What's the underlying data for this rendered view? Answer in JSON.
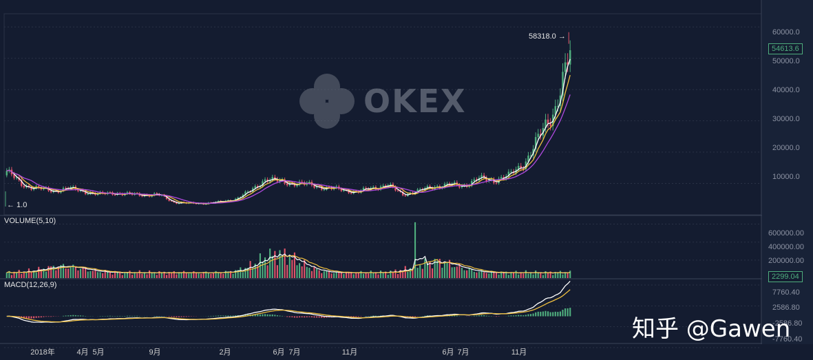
{
  "watermark": {
    "text": "OKEX"
  },
  "credit": {
    "text": "知乎 @Gawen"
  },
  "price_panel": {
    "high_label": "58318.0 →",
    "low_label": "← 1.0",
    "last_price": "54613.6",
    "y_ticks": [
      "60000.0",
      "50000.0",
      "40000.0",
      "30000.0",
      "20000.0",
      "10000.0"
    ]
  },
  "volume_panel": {
    "title": "VOLUME(5,10)",
    "last_value": "2299.04",
    "y_ticks": [
      "600000.00",
      "400000.00",
      "200000.00"
    ]
  },
  "macd_panel": {
    "title": "MACD(12,26,9)",
    "y_ticks": [
      "7760.40",
      "2586.80",
      "-2586.80",
      "-7760.40"
    ]
  },
  "x_axis": {
    "labels": [
      "2018年",
      "4月",
      "5月",
      "9月",
      "2月",
      "6月",
      "7月",
      "11月",
      "6月",
      "7月",
      "11月"
    ]
  },
  "colors": {
    "background": "#141c30",
    "up": "#4fae7e",
    "down": "#e0546a",
    "ma_white": "#ffffff",
    "ma_yellow": "#f0c040",
    "ma_purple": "#b04ae0",
    "grid": "#2a3246"
  },
  "chart_data": {
    "type": "line",
    "title": "",
    "x_start": "2018-01",
    "x_end": "2021-02",
    "panels": [
      "price",
      "volume",
      "macd"
    ],
    "price": {
      "ylim": [
        0,
        62000
      ],
      "x": [
        "2018-01",
        "2018-02",
        "2018-03",
        "2018-04",
        "2018-05",
        "2018-06",
        "2018-07",
        "2018-08",
        "2018-09",
        "2018-10",
        "2018-11",
        "2018-12",
        "2019-01",
        "2019-02",
        "2019-03",
        "2019-04",
        "2019-05",
        "2019-06",
        "2019-07",
        "2019-08",
        "2019-09",
        "2019-10",
        "2019-11",
        "2019-12",
        "2020-01",
        "2020-02",
        "2020-03",
        "2020-04",
        "2020-05",
        "2020-06",
        "2020-07",
        "2020-08",
        "2020-09",
        "2020-10",
        "2020-11",
        "2020-12",
        "2021-01",
        "2021-02"
      ],
      "series": [
        {
          "values": [
            14000,
            9500,
            8500,
            7500,
            8500,
            7500,
            6500,
            7000,
            6500,
            6400,
            6300,
            4000,
            3600,
            3700,
            4000,
            5000,
            7500,
            11500,
            10500,
            10000,
            9500,
            8500,
            8000,
            7200,
            8500,
            9500,
            6500,
            7500,
            9000,
            9500,
            9300,
            11500,
            11000,
            12500,
            16500,
            25000,
            34000,
            51000
          ]
        }
      ],
      "high": 58318.0,
      "low": 1.0,
      "last": 54613.6
    },
    "volume": {
      "ylim": [
        0,
        650000
      ],
      "last": 2299.04
    },
    "macd": {
      "ylim": [
        -7760.4,
        7760.4
      ]
    },
    "grid": true
  }
}
